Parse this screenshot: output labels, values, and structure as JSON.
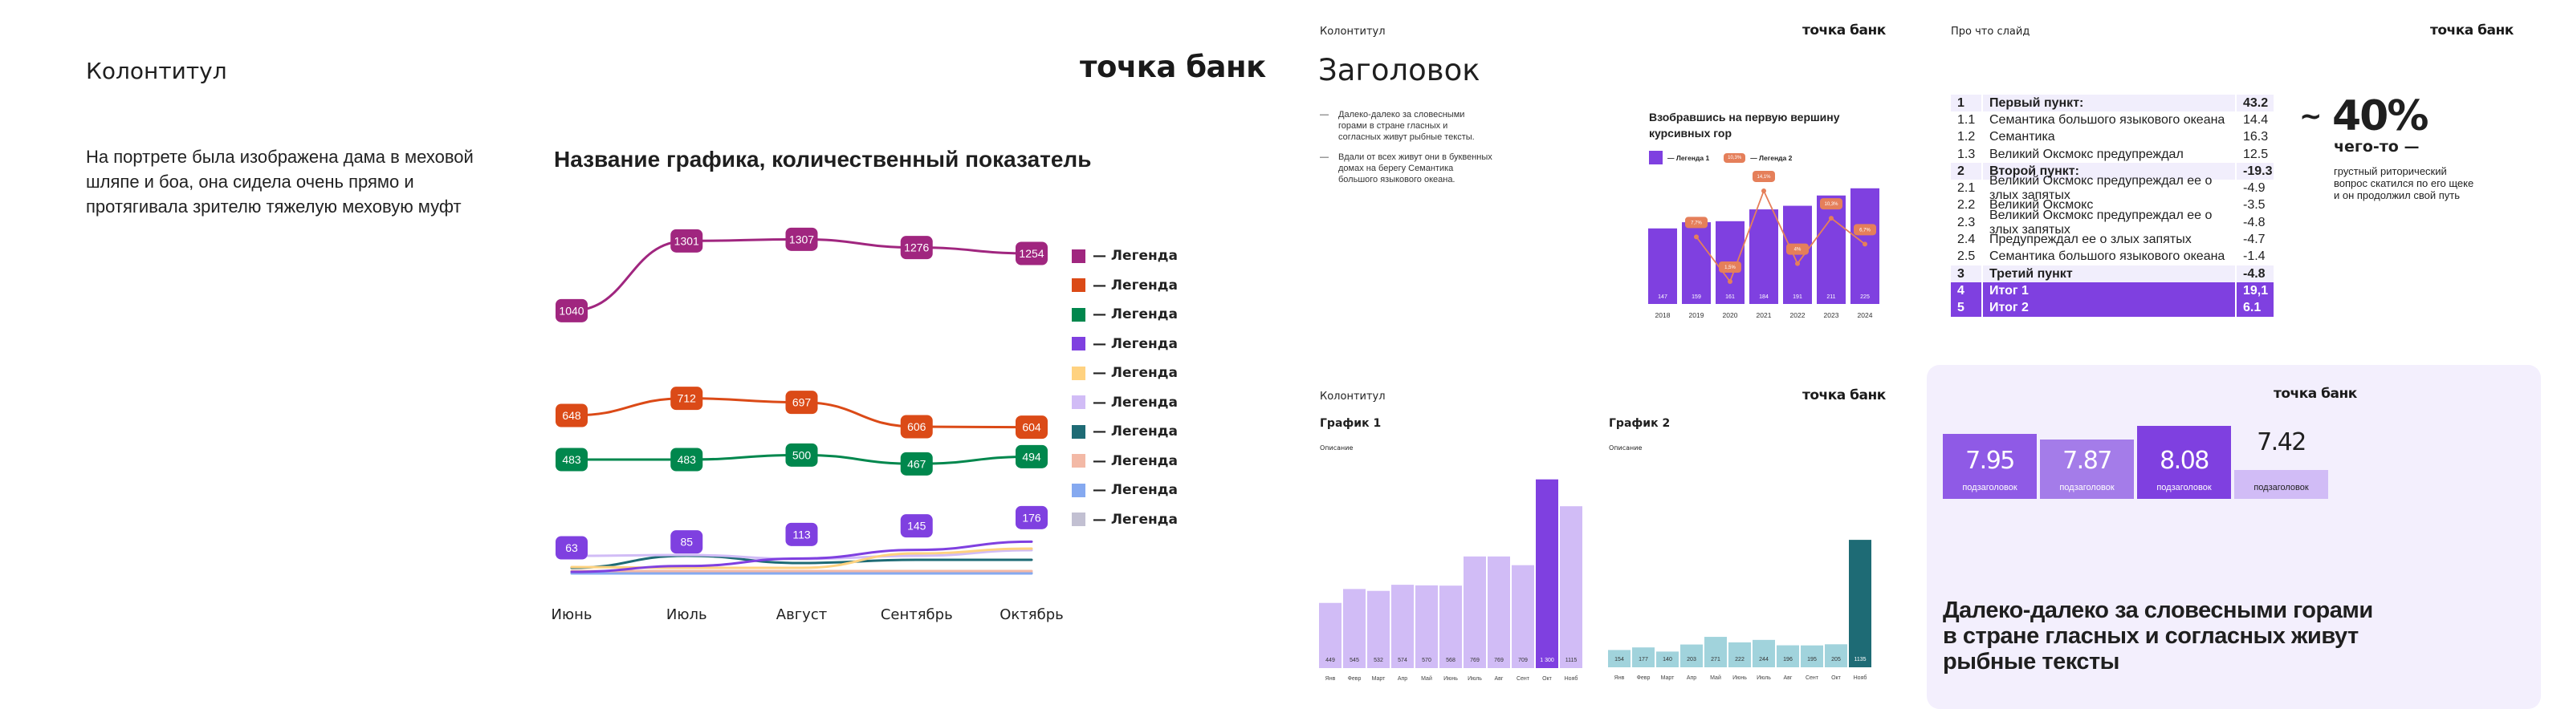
{
  "slide1": {
    "header": "Колонтитул",
    "logo": "точка банк",
    "paragraph": [
      "На портрете была изображена дама в меховой",
      "шляпе и боа, она сидела очень прямо и",
      "протягивала зрителю тяжелую меховую муфт"
    ],
    "chart_title": "Название графика, количественный показатель"
  },
  "slide2": {
    "header": "Колонтитул",
    "logo": "точка банк",
    "title": "Заголовок",
    "bullet_dash": "—",
    "bullets": [
      [
        "Далеко-далеко за словесными",
        "горами в стране гласных и",
        "согласных живут рыбные тексты."
      ],
      [
        "Вдали от всех живут они в буквенных",
        "домах на берегу Семантика",
        "большого языкового океана."
      ]
    ],
    "chart_title": [
      "Взобравшись на первую вершину",
      "курсивных гор"
    ],
    "legend": {
      "bar": "— Легенда 1",
      "badge_sample": "10,3%",
      "line": "— Легенда 2"
    }
  },
  "slide3": {
    "header": "Про что слайд",
    "logo": "точка банк",
    "table": [
      {
        "num": "1",
        "label": "Первый пункт:",
        "value": "43.2",
        "style": "h"
      },
      {
        "num": "1.1",
        "label": "Семантика большого языкового океана",
        "value": "14.4",
        "style": ""
      },
      {
        "num": "1.2",
        "label": "Семантика",
        "value": "16.3",
        "style": ""
      },
      {
        "num": "1.3",
        "label": "Великий Оксмокс предупреждал",
        "value": "12.5",
        "style": ""
      },
      {
        "num": "2",
        "label": "Второй пункт:",
        "value": "-19.3",
        "style": "h"
      },
      {
        "num": "2.1",
        "label": "Великий Оксмокс предупреждал ее о злых запятых",
        "value": "-4.9",
        "style": ""
      },
      {
        "num": "2.2",
        "label": "Великий Оксмокс",
        "value": "-3.5",
        "style": ""
      },
      {
        "num": "2.3",
        "label": "Великий Оксмокс предупреждал ее о злых запятых",
        "value": "-4.8",
        "style": ""
      },
      {
        "num": "2.4",
        "label": "Предупреждал ее о злых запятых",
        "value": "-4.7",
        "style": ""
      },
      {
        "num": "2.5",
        "label": "Семантика большого языкового океана",
        "value": "-1.4",
        "style": ""
      },
      {
        "num": "3",
        "label": "Третий пункт",
        "value": "-4.8",
        "style": "h"
      },
      {
        "num": "4",
        "label": "Итог 1",
        "value": "19,1",
        "style": "t"
      },
      {
        "num": "5",
        "label": "Итог 2",
        "value": "6.1",
        "style": "t"
      }
    ],
    "stat": {
      "tilde": "~",
      "value": "40%",
      "subtitle": "чего-то —",
      "text": [
        "грустный риторический",
        "вопрос скатился по его щеке",
        "и он продолжил свой путь"
      ]
    }
  },
  "slide4": {
    "header": "Колонтитул",
    "logo": "точка банк",
    "chart1": {
      "title": "График 1",
      "desc": "Описание"
    },
    "chart2": {
      "title": "График 2",
      "desc": "Описание"
    }
  },
  "slide5": {
    "logo": "точка банк",
    "kpis": [
      {
        "value": "7.95",
        "label": "подзаголовок",
        "color": "#8f5ae6"
      },
      {
        "value": "7.87",
        "label": "подзаголовок",
        "color": "#a47ce9"
      },
      {
        "value": "8.08",
        "label": "подзаголовок",
        "color": "#7f40e0"
      },
      {
        "value": "7.42",
        "label": "подзаголовок",
        "color": "#d1bcf6"
      }
    ],
    "text": [
      "Далеко-далеко за словесными горами",
      "в стране гласных и согласных живут",
      "рыбные тексты"
    ]
  },
  "chart_data": [
    {
      "type": "line",
      "title": "Название графика, количественный показатель",
      "categories": [
        "Июнь",
        "Июль",
        "Август",
        "Сентябрь",
        "Октябрь"
      ],
      "legend_position": "right",
      "series": [
        {
          "name": "— Легенда",
          "color": "#a0267f",
          "values": [
            1040,
            1301,
            1307,
            1276,
            1254
          ],
          "labeled": true
        },
        {
          "name": "— Легенда",
          "color": "#db4a17",
          "values": [
            648,
            712,
            697,
            606,
            604
          ],
          "labeled": true
        },
        {
          "name": "— Легенда",
          "color": "#00874d",
          "values": [
            483,
            483,
            500,
            467,
            494
          ],
          "labeled": true
        },
        {
          "name": "— Легенда",
          "color": "#7f40e0",
          "values": [
            63,
            85,
            113,
            145,
            176
          ],
          "labeled": true
        },
        {
          "name": "— Легенда",
          "color": "#ffd280",
          "values": [
            81,
            78,
            78,
            132,
            150
          ],
          "labeled": false
        },
        {
          "name": "— Легенда",
          "color": "#d1bcf6",
          "values": [
            123,
            126,
            111,
            123,
            144
          ],
          "labeled": false
        },
        {
          "name": "— Легенда",
          "color": "#1e6b75",
          "values": [
            78,
            123,
            96,
            108,
            108
          ],
          "labeled": false
        },
        {
          "name": "— Легенда",
          "color": "#f3b9a6",
          "values": [
            66,
            66,
            66,
            66,
            66
          ],
          "labeled": false
        },
        {
          "name": "— Легенда",
          "color": "#85a9f0",
          "values": [
            57,
            57,
            57,
            57,
            57
          ],
          "labeled": false
        },
        {
          "name": "— Легенда",
          "color": "#c2c0d2",
          "values": [
            60,
            60,
            60,
            60,
            60
          ],
          "labeled": false
        }
      ]
    },
    {
      "type": "bar",
      "title": "Взобравшись на первую вершину курсивных гор",
      "categories": [
        "2018",
        "2019",
        "2020",
        "2021",
        "2022",
        "2023",
        "2024"
      ],
      "series": [
        {
          "name": "— Легенда 1",
          "type": "bar",
          "color": "#7f40e0",
          "values": [
            147,
            159,
            161,
            184,
            191,
            211,
            225
          ],
          "labels": [
            "147",
            "159",
            "161",
            "184",
            "191",
            "211",
            "225"
          ]
        },
        {
          "name": "— Легенда 2",
          "type": "line",
          "color": "#e57f5a",
          "values": [
            null,
            7.7,
            1.5,
            14.1,
            4,
            10.3,
            6.7
          ],
          "labels": [
            "",
            "7,7%",
            "1,5%",
            "14,1%",
            "4%",
            "10,3%",
            "6,7%"
          ]
        }
      ]
    },
    {
      "type": "bar",
      "title": "График 1",
      "categories": [
        "Янв",
        "Февр",
        "Март",
        "Апр",
        "Май",
        "Июнь",
        "Июль",
        "Авг",
        "Сент",
        "Окт",
        "Нояб"
      ],
      "values": [
        449,
        545,
        532,
        574,
        570,
        568,
        769,
        769,
        709,
        1300,
        1115
      ],
      "labels": [
        "449",
        "545",
        "532",
        "574",
        "570",
        "568",
        "769",
        "769",
        "709",
        "1 300",
        "1115"
      ],
      "highlight_index": 9,
      "colors": {
        "base": "#d1bcf6",
        "highlight": "#7f40e0"
      }
    },
    {
      "type": "bar",
      "title": "График 2",
      "categories": [
        "Янв",
        "Февр",
        "Март",
        "Апр",
        "Май",
        "Июнь",
        "Июль",
        "Авг",
        "Сент",
        "Окт",
        "Нояб"
      ],
      "values": [
        154,
        177,
        140,
        203,
        271,
        222,
        244,
        196,
        195,
        205,
        1135
      ],
      "labels": [
        "154",
        "177",
        "140",
        "203",
        "271",
        "222",
        "244",
        "196",
        "195",
        "205",
        "1135"
      ],
      "highlight_index": 10,
      "colors": {
        "base": "#a1d3dc",
        "highlight": "#1e6b75"
      }
    }
  ]
}
